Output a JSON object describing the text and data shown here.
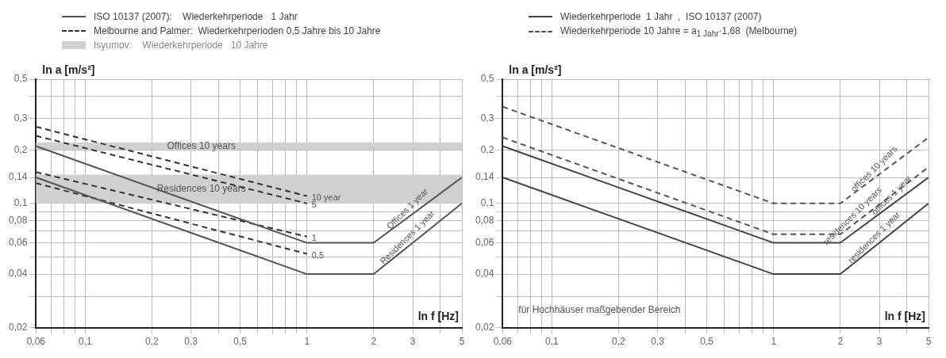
{
  "chart_data": [
    {
      "type": "line",
      "xlabel": "ln f [Hz]",
      "ylabel": "ln a [m/s²]",
      "legend": "top",
      "grid": true,
      "marker": "none",
      "log": "xy",
      "xlim": [
        0.06,
        5
      ],
      "ylim": [
        0.02,
        0.5
      ],
      "xticks": [
        {
          "value": 0.06,
          "label": "0,06"
        },
        {
          "value": 0.07,
          "label": null
        },
        {
          "value": 0.08,
          "label": null
        },
        {
          "value": 0.09,
          "label": null
        },
        {
          "value": 0.1,
          "label": "0,1"
        },
        {
          "value": 0.2,
          "label": "0,2"
        },
        {
          "value": 0.3,
          "label": "0,3"
        },
        {
          "value": 0.4,
          "label": null
        },
        {
          "value": 0.5,
          "label": "0,5"
        },
        {
          "value": 0.6,
          "label": null
        },
        {
          "value": 0.7,
          "label": null
        },
        {
          "value": 0.8,
          "label": null
        },
        {
          "value": 0.9,
          "label": null
        },
        1,
        2,
        3,
        {
          "value": 4,
          "label": null
        },
        5
      ],
      "yticks": [
        {
          "value": 0.02,
          "label": "0,02"
        },
        {
          "value": 0.03,
          "label": null
        },
        {
          "value": 0.04,
          "label": "0,04"
        },
        {
          "value": 0.05,
          "label": null
        },
        {
          "value": 0.06,
          "label": "0,06"
        },
        {
          "value": 0.07,
          "label": null
        },
        {
          "value": 0.08,
          "label": "0,08"
        },
        {
          "value": 0.09,
          "label": null
        },
        {
          "value": 0.1,
          "label": "0,1"
        },
        {
          "value": 0.14,
          "label": "0,14"
        },
        {
          "value": 0.2,
          "label": "0,2"
        },
        {
          "value": 0.3,
          "label": "0,3"
        },
        {
          "value": 0.4,
          "label": null
        },
        {
          "value": 0.5,
          "label": "0,5"
        }
      ],
      "bands": [
        {
          "axis": "y",
          "from": 0.2,
          "to": 0.22,
          "label": "Offices 10 years",
          "color": "#d0d0d0"
        },
        {
          "axis": "y",
          "from": 0.1,
          "to": 0.145,
          "label": "Residences 10 years",
          "color": "#d0d0d0"
        }
      ],
      "series": [
        {
          "name": "ISO 10137 (2007):    Wiederkehrperiode   1 Jahr",
          "color": "#555555",
          "line_style": "solid",
          "x": [
            0.06,
            1,
            2,
            5
          ],
          "values": [
            0.21,
            0.06,
            0.06,
            0.14
          ]
        },
        {
          "color": "#555555",
          "line_style": "solid",
          "x": [
            0.06,
            1,
            2,
            5
          ],
          "values": [
            0.14,
            0.04,
            0.04,
            0.1
          ]
        },
        {
          "name": "Melbourne and Palmer:  Wiederkehrperioden 0,5 Jahre bis 10 Jahre",
          "color": "#333333",
          "line_style": "dashed",
          "x": [
            0.06,
            1
          ],
          "values": [
            0.27,
            0.11
          ]
        },
        {
          "color": "#333333",
          "line_style": "dashed",
          "x": [
            0.06,
            1
          ],
          "values": [
            0.24,
            0.1
          ]
        },
        {
          "color": "#333333",
          "line_style": "dashed",
          "x": [
            0.06,
            1
          ],
          "values": [
            0.15,
            0.065
          ]
        },
        {
          "color": "#333333",
          "line_style": "dashed",
          "x": [
            0.06,
            1
          ],
          "values": [
            0.13,
            0.052
          ]
        }
      ],
      "annotations": [
        "Isyumov:    Wiederkehrperiode   10 Jahre",
        {
          "text": "10 year",
          "x": 1,
          "y": 0.11
        },
        {
          "text": "5",
          "x": 1,
          "y": 0.1
        },
        {
          "text": "1",
          "x": 1,
          "y": 0.065
        },
        {
          "text": "0,5",
          "x": 1,
          "y": 0.052
        },
        {
          "text": "Offices 1 year",
          "x": 3,
          "y": 0.087
        },
        {
          "text": "Residences 1 year",
          "x": 3,
          "y": 0.06
        }
      ]
    },
    {
      "type": "line",
      "xlabel": "ln f [Hz]",
      "ylabel": "ln a [m/s²]",
      "legend": "top",
      "grid": true,
      "marker": "none",
      "log": "xy",
      "xlim": [
        0.06,
        5
      ],
      "ylim": [
        0.02,
        0.5
      ],
      "xticks": [
        {
          "value": 0.06,
          "label": "0,06"
        },
        {
          "value": 0.07,
          "label": null
        },
        {
          "value": 0.08,
          "label": null
        },
        {
          "value": 0.09,
          "label": null
        },
        {
          "value": 0.1,
          "label": "0,1"
        },
        {
          "value": 0.2,
          "label": "0,2"
        },
        {
          "value": 0.3,
          "label": "0,3"
        },
        {
          "value": 0.4,
          "label": null
        },
        {
          "value": 0.5,
          "label": "0,5"
        },
        {
          "value": 0.6,
          "label": null
        },
        {
          "value": 0.7,
          "label": null
        },
        {
          "value": 0.8,
          "label": null
        },
        {
          "value": 0.9,
          "label": null
        },
        1,
        2,
        3,
        {
          "value": 4,
          "label": null
        },
        5
      ],
      "yticks": [
        {
          "value": 0.02,
          "label": "0,02"
        },
        {
          "value": 0.03,
          "label": null
        },
        {
          "value": 0.04,
          "label": "0,04"
        },
        {
          "value": 0.05,
          "label": null
        },
        {
          "value": 0.06,
          "label": "0,06"
        },
        {
          "value": 0.07,
          "label": null
        },
        {
          "value": 0.08,
          "label": "0,08"
        },
        {
          "value": 0.09,
          "label": null
        },
        {
          "value": 0.1,
          "label": "0,1"
        },
        {
          "value": 0.14,
          "label": "0,14"
        },
        {
          "value": 0.2,
          "label": "0,2"
        },
        {
          "value": 0.3,
          "label": "0,3"
        },
        {
          "value": 0.4,
          "label": null
        },
        {
          "value": 0.5,
          "label": "0,5"
        }
      ],
      "series": [
        {
          "name": "Wiederkehrperiode  1 Jahr  ,  ISO 10137 (2007)",
          "color": "#444444",
          "line_style": "solid",
          "x": [
            0.06,
            1,
            2,
            5
          ],
          "values": [
            0.21,
            0.06,
            0.06,
            0.14
          ]
        },
        {
          "color": "#444444",
          "line_style": "solid",
          "x": [
            0.06,
            1,
            2,
            5
          ],
          "values": [
            0.14,
            0.04,
            0.04,
            0.1
          ]
        },
        {
          "name": "Wiederkehrperiode 10 Jahre = a$_{1 Jahr}$·1,68  (Melbourne)",
          "color": "#555555",
          "line_style": "dashed",
          "x": [
            0.06,
            1,
            2,
            5
          ],
          "values": [
            0.35,
            0.1,
            0.1,
            0.235
          ]
        },
        {
          "color": "#555555",
          "line_style": "dashed",
          "x": [
            0.06,
            1,
            2,
            5
          ],
          "values": [
            0.235,
            0.067,
            0.067,
            0.16
          ]
        }
      ],
      "annotations": [
        {
          "text": "offices 10 years",
          "x": 3,
          "y": 0.146
        },
        {
          "text": "residences 10 years",
          "x": 2.4,
          "y": 0.0794
        },
        {
          "text": "offices 1 year",
          "x": 3.6,
          "y": 0.1036
        },
        {
          "text": "residences 1 year",
          "x": 3,
          "y": 0.06
        },
        "für Hochhäuser maßgebender Bereich"
      ]
    }
  ]
}
